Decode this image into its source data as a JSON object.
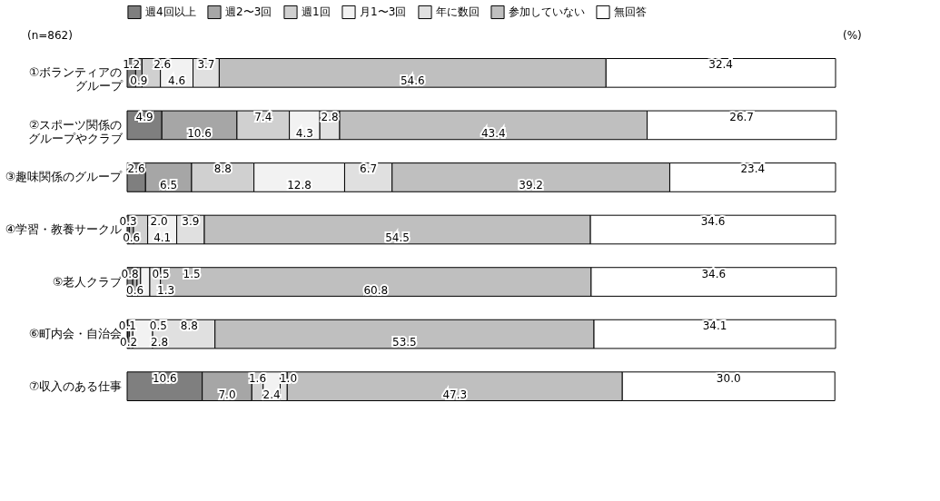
{
  "chart_data": {
    "type": "bar",
    "orientation": "horizontal",
    "stacked": true,
    "legend": "top",
    "tick_labels": "y",
    "xlim": [
      0,
      100
    ],
    "categories": [
      "①ボランティアのグループ",
      "②スポーツ関係のグループやクラブ",
      "③趣味関係のグループ",
      "④学習・教養サークル",
      "⑤老人クラブ",
      "⑥町内会・自治会",
      "⑦収入のある仕事"
    ],
    "series": [
      {
        "name": "週4回以上",
        "color": "#7f7f7f",
        "values": [
          1.2,
          4.9,
          2.6,
          0.3,
          0.8,
          0.1,
          10.6
        ],
        "value_labels": [
          "1.2",
          "4.9",
          "2.6",
          "0.3",
          "0.8",
          "0.1",
          "10.6"
        ]
      },
      {
        "name": "週2〜3回",
        "color": "#a6a6a6",
        "values": [
          0.9,
          10.6,
          6.5,
          0.6,
          0.6,
          0.2,
          7.0
        ],
        "value_labels": [
          "0.9",
          "10.6",
          "6.5",
          "0.6",
          "0.6",
          "0.2",
          "7.0"
        ]
      },
      {
        "name": "週1回",
        "color": "#d0d0d0",
        "values": [
          2.6,
          7.4,
          8.8,
          2.0,
          0.5,
          0.5,
          1.6
        ],
        "value_labels": [
          "2.6",
          "7.4",
          "8.8",
          "2.0",
          "0.5",
          "0.5",
          "1.6"
        ]
      },
      {
        "name": "月1〜3回",
        "color": "#f2f2f2",
        "values": [
          4.6,
          4.3,
          12.8,
          4.1,
          1.3,
          2.8,
          2.4
        ],
        "value_labels": [
          "4.6",
          "4.3",
          "12.8",
          "4.1",
          "1.3",
          "2.8",
          "2.4"
        ]
      },
      {
        "name": "年に数回",
        "color": "#e0e0e0",
        "values": [
          3.7,
          2.8,
          6.7,
          3.9,
          1.5,
          8.8,
          1.0
        ],
        "value_labels": [
          "3.7",
          "2.8",
          "6.7",
          "3.9",
          "1.5",
          "8.8",
          "1.0"
        ]
      },
      {
        "name": "参加していない",
        "color": "#bfbfbf",
        "values": [
          54.6,
          43.4,
          39.2,
          54.5,
          60.8,
          53.5,
          47.3
        ],
        "value_labels": [
          "54.6",
          "43.4",
          "39.2",
          "54.5",
          "60.8",
          "53.5",
          "47.3"
        ]
      },
      {
        "name": "無回答",
        "color": "#ffffff",
        "values": [
          32.4,
          26.7,
          23.4,
          34.6,
          34.6,
          34.1,
          30.0
        ],
        "value_labels": [
          "32.4",
          "26.7",
          "23.4",
          "34.6",
          "34.6",
          "34.1",
          "30.0"
        ]
      }
    ],
    "annotations": [
      "(n=862)",
      "(%)"
    ]
  }
}
